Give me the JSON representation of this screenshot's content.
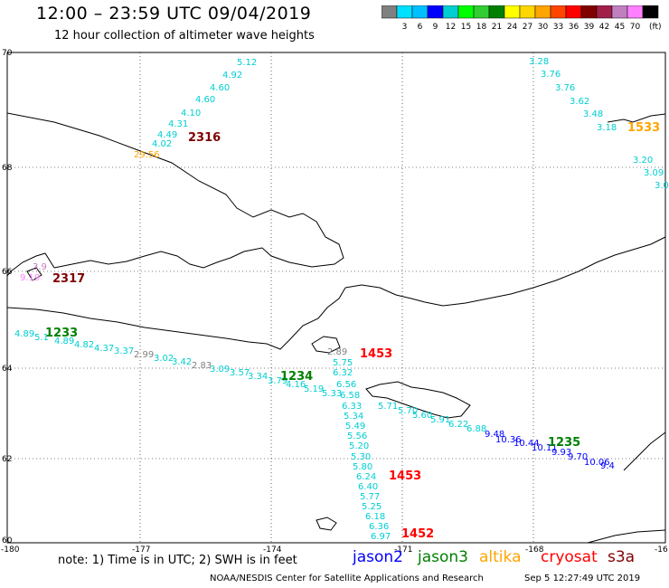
{
  "header": {
    "title": "12:00 – 23:59 UTC 09/04/2019",
    "subtitle": "12 hour collection of altimeter wave heights"
  },
  "colorbar": {
    "colors": [
      "#808080",
      "#00e0ff",
      "#00bfff",
      "#0000ff",
      "#00ced1",
      "#00ff00",
      "#32cd32",
      "#008000",
      "#ffff00",
      "#ffd700",
      "#ffa500",
      "#ff4500",
      "#ff0000",
      "#800000",
      "#a0204a",
      "#c080c0",
      "#ff80ff",
      "#000000"
    ],
    "labels": [
      "3",
      "6",
      "9",
      "12",
      "15",
      "18",
      "21",
      "24",
      "27",
      "30",
      "33",
      "36",
      "39",
      "42",
      "45",
      "70"
    ],
    "unit": "(ft)"
  },
  "axes": {
    "lon_ticks": [
      "-180",
      "-177",
      "-174",
      "-171",
      "-168",
      "-16"
    ],
    "lat_ticks": [
      "70",
      "68",
      "66",
      "64",
      "62",
      "60"
    ]
  },
  "tracks": [
    {
      "id": "2316",
      "color": "#800000",
      "pts": [
        "5.12",
        "4.92",
        "4.60",
        "4.60",
        "4.10",
        "4.31",
        "4.49",
        "4.02",
        "29.56"
      ]
    },
    {
      "id": "1533",
      "color": "#ffa500",
      "pts": [
        "3.28",
        "3.76",
        "3.76",
        "3.62",
        "3.48",
        "3.18",
        "3.20",
        "3.09",
        "3.0"
      ]
    },
    {
      "id": "2317",
      "color": "#800000",
      "pts": [
        "9.19",
        "3.9"
      ]
    },
    {
      "id": "1233",
      "color": "#008000",
      "pts": [
        "4.89",
        "5.1",
        "4.89",
        "4.82",
        "4.37",
        "3.37",
        "2.99",
        "3.02",
        "3.42",
        "2.83",
        "3.09",
        "3.57",
        "3.34",
        "3.79",
        "4.16",
        "5.19",
        "5.33"
      ]
    },
    {
      "id": "1234",
      "color": "#008000",
      "pts": [
        "6.32",
        "6.56",
        "6.58",
        "5.71",
        "5.70",
        "5.60",
        "5.91",
        "6.22",
        "6.88",
        "9.48",
        "10.36",
        "10.44",
        "10.11",
        "9.93",
        "9.70",
        "10.06",
        "9.4"
      ]
    },
    {
      "id": "1235",
      "color": "#008000",
      "pts": []
    },
    {
      "id": "1453",
      "color": "#ff0000",
      "pts": [
        "2.89",
        "5.75",
        "6.33",
        "5.34",
        "5.49",
        "5.56",
        "5.20",
        "5.30",
        "5.80",
        "6.24",
        "6.40",
        "5.77",
        "5.25",
        "6.18",
        "6.36",
        "6.97"
      ]
    },
    {
      "id": "1452",
      "color": "#ff0000",
      "pts": []
    }
  ],
  "track_ids": {
    "t2316": "2316",
    "t1533": "1533",
    "t2317": "2317",
    "t1233": "1233",
    "t1234": "1234",
    "t1235": "1235",
    "t1453a": "1453",
    "t1453b": "1453",
    "t1452": "1452"
  },
  "footer": {
    "note": "note:  1) Time is in UTC;  2) SWH is in feet",
    "sats": {
      "jason2": "jason2",
      "jason3": "jason3",
      "altika": "altika",
      "cryosat": "cryosat",
      "s3a": "s3a"
    },
    "credit": "NOAA/NESDIS Center for Satellite Applications and Research",
    "stamp": "Sep  5 12:27:49 UTC 2019"
  }
}
